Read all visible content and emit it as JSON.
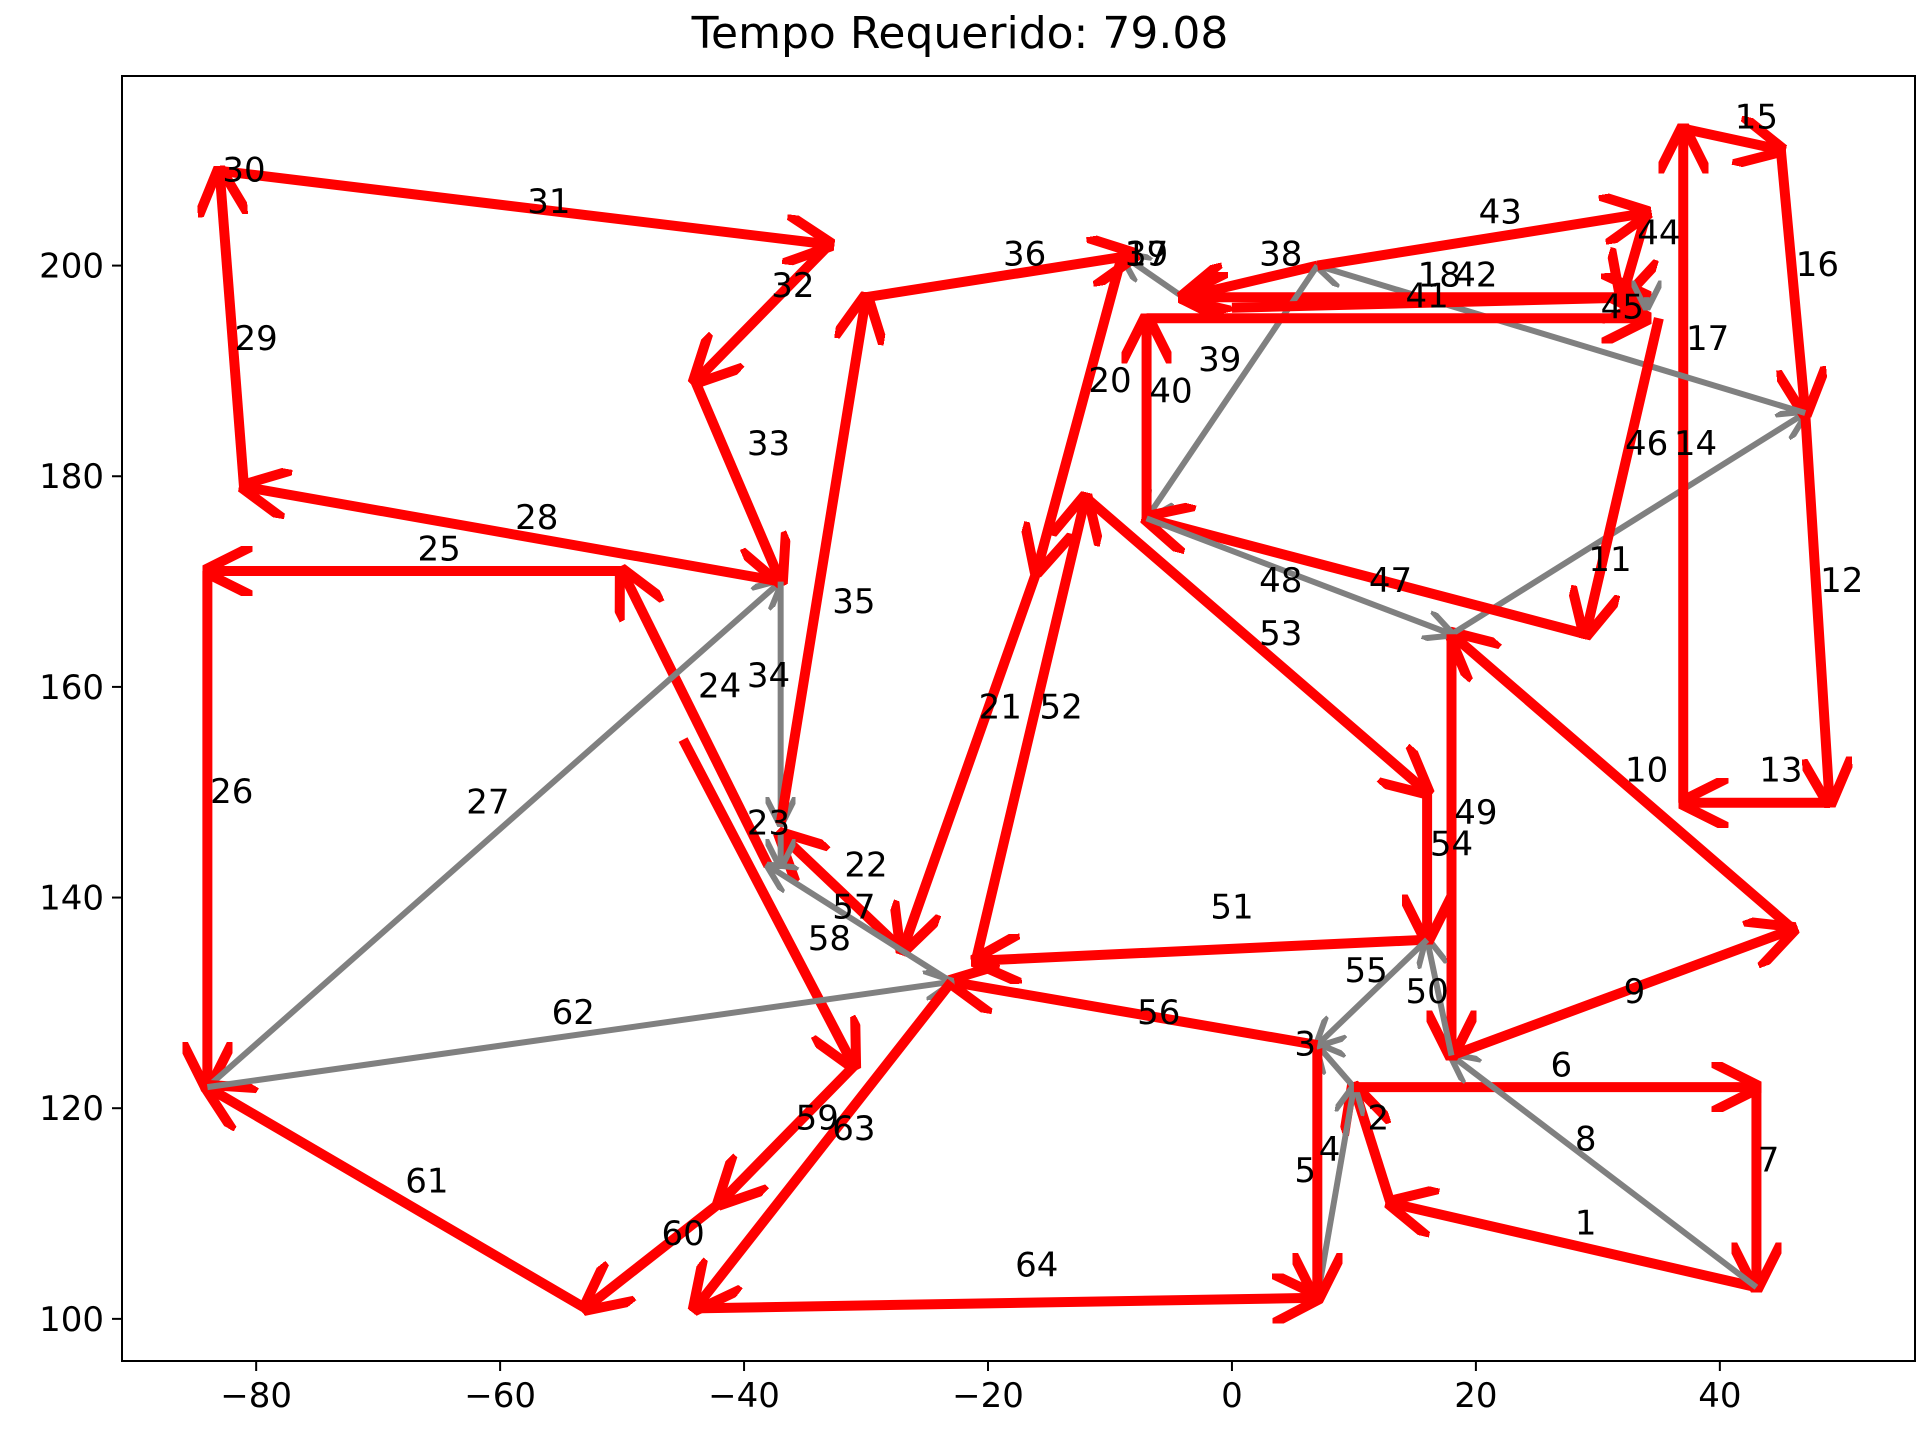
{
  "chart_data": {
    "type": "line",
    "title": "Tempo Requerido: 79.08",
    "xlabel": "",
    "ylabel": "",
    "xlim": [
      -91,
      56
    ],
    "ylim": [
      96,
      218
    ],
    "xticks": [
      -80,
      -60,
      -40,
      -20,
      0,
      20,
      40
    ],
    "yticks": [
      100,
      120,
      140,
      160,
      180,
      200
    ],
    "xtick_labels": [
      "−80",
      "−60",
      "−40",
      "−20",
      "0",
      "20",
      "40"
    ],
    "ytick_labels": [
      "100",
      "120",
      "140",
      "160",
      "180",
      "200"
    ],
    "grid": false,
    "colors": {
      "red": "#ff0000",
      "gray": "#808080"
    },
    "edges": [
      {
        "label": "1",
        "from": [
          43,
          103
        ],
        "to": [
          13,
          111
        ],
        "color": "red"
      },
      {
        "label": "2",
        "from": [
          13,
          111
        ],
        "to": [
          10,
          122
        ],
        "color": "red"
      },
      {
        "label": "3",
        "from": [
          10,
          122
        ],
        "to": [
          7,
          126
        ],
        "color": "gray"
      },
      {
        "label": "4",
        "from": [
          7,
          102
        ],
        "to": [
          10,
          122
        ],
        "color": "gray"
      },
      {
        "label": "5",
        "from": [
          7,
          126
        ],
        "to": [
          7,
          102
        ],
        "color": "red"
      },
      {
        "label": "6",
        "from": [
          10,
          122
        ],
        "to": [
          43,
          122
        ],
        "color": "red"
      },
      {
        "label": "7",
        "from": [
          43,
          122
        ],
        "to": [
          43,
          103
        ],
        "color": "red"
      },
      {
        "label": "8",
        "from": [
          43,
          103
        ],
        "to": [
          18,
          125
        ],
        "color": "gray"
      },
      {
        "label": "9",
        "from": [
          18,
          125
        ],
        "to": [
          46,
          137
        ],
        "color": "red"
      },
      {
        "label": "10",
        "from": [
          46,
          137
        ],
        "to": [
          18,
          165
        ],
        "color": "red"
      },
      {
        "label": "11",
        "from": [
          18,
          165
        ],
        "to": [
          47,
          186
        ],
        "color": "gray"
      },
      {
        "label": "12",
        "from": [
          47,
          186
        ],
        "to": [
          49,
          149
        ],
        "color": "red"
      },
      {
        "label": "13",
        "from": [
          49,
          149
        ],
        "to": [
          37,
          149
        ],
        "color": "red"
      },
      {
        "label": "14",
        "from": [
          37,
          149
        ],
        "to": [
          37,
          213
        ],
        "color": "red"
      },
      {
        "label": "15",
        "from": [
          37,
          213
        ],
        "to": [
          45,
          211
        ],
        "color": "red"
      },
      {
        "label": "16",
        "from": [
          45,
          211
        ],
        "to": [
          47,
          186
        ],
        "color": "red"
      },
      {
        "label": "17",
        "from": [
          47,
          186
        ],
        "to": [
          7,
          200
        ],
        "color": "gray"
      },
      {
        "label": "18",
        "from": [
          34,
          197
        ],
        "to": [
          -4,
          197
        ],
        "color": "red"
      },
      {
        "label": "19",
        "from": [
          -4,
          197
        ],
        "to": [
          -9,
          201
        ],
        "color": "gray"
      },
      {
        "label": "20",
        "from": [
          -9,
          201
        ],
        "to": [
          -16,
          171
        ],
        "color": "red"
      },
      {
        "label": "21",
        "from": [
          -16,
          171
        ],
        "to": [
          -27,
          135
        ],
        "color": "red"
      },
      {
        "label": "22",
        "from": [
          -27,
          135
        ],
        "to": [
          -37,
          146
        ],
        "color": "red"
      },
      {
        "label": "23",
        "from": [
          -37,
          146
        ],
        "to": [
          -37,
          143
        ],
        "color": "gray"
      },
      {
        "label": "24",
        "from": [
          -38,
          143
        ],
        "to": [
          -50,
          171
        ],
        "color": "red"
      },
      {
        "label": "25",
        "from": [
          -50,
          171
        ],
        "to": [
          -84,
          171
        ],
        "color": "red"
      },
      {
        "label": "26",
        "from": [
          -84,
          171
        ],
        "to": [
          -84,
          122
        ],
        "color": "red"
      },
      {
        "label": "27",
        "from": [
          -84,
          122
        ],
        "to": [
          -37,
          170
        ],
        "color": "gray"
      },
      {
        "label": "28",
        "from": [
          -37,
          170
        ],
        "to": [
          -81,
          179
        ],
        "color": "red"
      },
      {
        "label": "29",
        "from": [
          -81,
          179
        ],
        "to": [
          -83,
          209
        ],
        "color": "red"
      },
      {
        "label": "30",
        "from": [
          -83,
          209
        ],
        "to": [
          -83,
          209
        ],
        "color": "red"
      },
      {
        "label": "31",
        "from": [
          -83,
          209
        ],
        "to": [
          -33,
          202
        ],
        "color": "red"
      },
      {
        "label": "32",
        "from": [
          -33,
          202
        ],
        "to": [
          -44,
          189
        ],
        "color": "red"
      },
      {
        "label": "33",
        "from": [
          -44,
          189
        ],
        "to": [
          -37,
          170
        ],
        "color": "red"
      },
      {
        "label": "34",
        "from": [
          -37,
          170
        ],
        "to": [
          -37,
          147
        ],
        "color": "gray"
      },
      {
        "label": "35",
        "from": [
          -37,
          147
        ],
        "to": [
          -30,
          197
        ],
        "color": "red"
      },
      {
        "label": "36",
        "from": [
          -30,
          197
        ],
        "to": [
          -8,
          201
        ],
        "color": "red"
      },
      {
        "label": "37",
        "from": [
          -8,
          201
        ],
        "to": [
          -8,
          201
        ],
        "color": "gray"
      },
      {
        "label": "38",
        "from": [
          7,
          200
        ],
        "to": [
          -4,
          197
        ],
        "color": "red"
      },
      {
        "label": "39",
        "from": [
          7,
          200
        ],
        "to": [
          -7,
          176
        ],
        "color": "gray"
      },
      {
        "label": "40",
        "from": [
          -7,
          176
        ],
        "to": [
          -7,
          195
        ],
        "color": "red"
      },
      {
        "label": "41",
        "from": [
          -7,
          195
        ],
        "to": [
          34,
          195
        ],
        "color": "red"
      },
      {
        "label": "42",
        "from": [
          0,
          196
        ],
        "to": [
          34,
          197
        ],
        "color": "red"
      },
      {
        "label": "43",
        "from": [
          7,
          200
        ],
        "to": [
          34,
          205
        ],
        "color": "red"
      },
      {
        "label": "44",
        "from": [
          34,
          205
        ],
        "to": [
          32,
          197
        ],
        "color": "red"
      },
      {
        "label": "45",
        "from": [
          34,
          197
        ],
        "to": [
          34,
          196
        ],
        "color": "gray"
      },
      {
        "label": "46",
        "from": [
          35,
          195
        ],
        "to": [
          29,
          165
        ],
        "color": "red"
      },
      {
        "label": "47",
        "from": [
          29,
          165
        ],
        "to": [
          -7,
          176
        ],
        "color": "red"
      },
      {
        "label": "48",
        "from": [
          -7,
          176
        ],
        "to": [
          18,
          165
        ],
        "color": "gray"
      },
      {
        "label": "49",
        "from": [
          18,
          165
        ],
        "to": [
          18,
          125
        ],
        "color": "red"
      },
      {
        "label": "50",
        "from": [
          18,
          125
        ],
        "to": [
          16,
          136
        ],
        "color": "gray"
      },
      {
        "label": "51",
        "from": [
          16,
          136
        ],
        "to": [
          -21,
          134
        ],
        "color": "red"
      },
      {
        "label": "52",
        "from": [
          -21,
          134
        ],
        "to": [
          -12,
          178
        ],
        "color": "red"
      },
      {
        "label": "53",
        "from": [
          -12,
          178
        ],
        "to": [
          16,
          150
        ],
        "color": "red"
      },
      {
        "label": "54",
        "from": [
          16,
          150
        ],
        "to": [
          16,
          136
        ],
        "color": "red"
      },
      {
        "label": "55",
        "from": [
          16,
          136
        ],
        "to": [
          7,
          126
        ],
        "color": "gray"
      },
      {
        "label": "56",
        "from": [
          7,
          126
        ],
        "to": [
          -23,
          132
        ],
        "color": "red"
      },
      {
        "label": "57",
        "from": [
          -23,
          132
        ],
        "to": [
          -38,
          143
        ],
        "color": "gray"
      },
      {
        "label": "58",
        "from": [
          -45,
          155
        ],
        "to": [
          -31,
          124
        ],
        "color": "red"
      },
      {
        "label": "59",
        "from": [
          -31,
          124
        ],
        "to": [
          -42,
          111
        ],
        "color": "red"
      },
      {
        "label": "60",
        "from": [
          -42,
          111
        ],
        "to": [
          -53,
          101
        ],
        "color": "red"
      },
      {
        "label": "61",
        "from": [
          -53,
          101
        ],
        "to": [
          -84,
          122
        ],
        "color": "red"
      },
      {
        "label": "62",
        "from": [
          -84,
          122
        ],
        "to": [
          -23,
          132
        ],
        "color": "gray"
      },
      {
        "label": "63",
        "from": [
          -23,
          132
        ],
        "to": [
          -44,
          101
        ],
        "color": "red"
      },
      {
        "label": "64",
        "from": [
          -44,
          101
        ],
        "to": [
          7,
          102
        ],
        "color": "red"
      }
    ],
    "edge_label_positions": {
      "1": [
        29,
        108
      ],
      "2": [
        12,
        118
      ],
      "3": [
        6,
        125
      ],
      "4": [
        8,
        115
      ],
      "5": [
        6,
        113
      ],
      "6": [
        27,
        123
      ],
      "7": [
        44,
        114
      ],
      "8": [
        29,
        116
      ],
      "9": [
        33,
        130
      ],
      "10": [
        34,
        151
      ],
      "11": [
        31,
        171
      ],
      "12": [
        50,
        169
      ],
      "13": [
        45,
        151
      ],
      "14": [
        38,
        182
      ],
      "15": [
        43,
        213
      ],
      "16": [
        48,
        199
      ],
      "17": [
        39,
        192
      ],
      "18": [
        17,
        198
      ],
      "19": [
        -7,
        200
      ],
      "20": [
        -10,
        188
      ],
      "21": [
        -19,
        157
      ],
      "22": [
        -30,
        142
      ],
      "23": [
        -38,
        146
      ],
      "24": [
        -42,
        159
      ],
      "25": [
        -65,
        172
      ],
      "26": [
        -82,
        149
      ],
      "27": [
        -61,
        148
      ],
      "28": [
        -57,
        175
      ],
      "29": [
        -80,
        192
      ],
      "30": [
        -81,
        208
      ],
      "31": [
        -56,
        205
      ],
      "32": [
        -36,
        197
      ],
      "33": [
        -38,
        182
      ],
      "34": [
        -38,
        160
      ],
      "35": [
        -31,
        167
      ],
      "36": [
        -17,
        200
      ],
      "37": [
        -7,
        200
      ],
      "38": [
        4,
        200
      ],
      "39": [
        -1,
        190
      ],
      "40": [
        -5,
        187
      ],
      "41": [
        16,
        196
      ],
      "42": [
        20,
        198
      ],
      "43": [
        22,
        204
      ],
      "44": [
        35,
        202
      ],
      "45": [
        32,
        195
      ],
      "46": [
        34,
        182
      ],
      "47": [
        13,
        169
      ],
      "48": [
        4,
        169
      ],
      "49": [
        20,
        147
      ],
      "50": [
        16,
        130
      ],
      "51": [
        0,
        138
      ],
      "52": [
        -14,
        157
      ],
      "53": [
        4,
        164
      ],
      "54": [
        18,
        144
      ],
      "55": [
        11,
        132
      ],
      "56": [
        -6,
        128
      ],
      "57": [
        -31,
        138
      ],
      "58": [
        -33,
        135
      ],
      "59": [
        -34,
        118
      ],
      "60": [
        -45,
        107
      ],
      "61": [
        -66,
        112
      ],
      "62": [
        -54,
        128
      ],
      "63": [
        -31,
        117
      ],
      "64": [
        -16,
        104
      ]
    }
  }
}
